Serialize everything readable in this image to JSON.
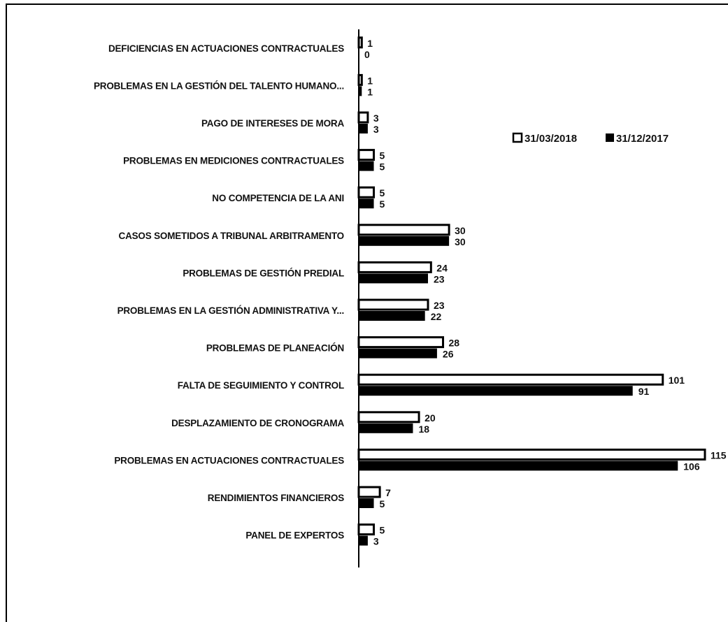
{
  "chart_data": {
    "type": "bar",
    "orientation": "horizontal",
    "categories": [
      "DEFICIENCIAS EN ACTUACIONES CONTRACTUALES",
      "PROBLEMAS EN LA GESTIÓN DEL TALENTO HUMANO...",
      "PAGO DE INTERESES DE MORA",
      "PROBLEMAS EN MEDICIONES CONTRACTUALES",
      "NO COMPETENCIA DE LA ANI",
      "CASOS SOMETIDOS A TRIBUNAL ARBITRAMENTO",
      "PROBLEMAS DE GESTIÓN PREDIAL",
      "PROBLEMAS EN LA GESTIÓN ADMINISTRATIVA Y...",
      "PROBLEMAS DE PLANEACIÓN",
      "FALTA DE SEGUIMIENTO Y CONTROL",
      "DESPLAZAMIENTO DE CRONOGRAMA",
      "PROBLEMAS EN ACTUACIONES CONTRACTUALES",
      "RENDIMIENTOS FINANCIEROS",
      "PANEL DE EXPERTOS"
    ],
    "series": [
      {
        "name": "31/03/2018",
        "style": "outline",
        "values": [
          1,
          1,
          3,
          5,
          5,
          30,
          24,
          23,
          28,
          101,
          20,
          115,
          7,
          5
        ],
        "labels": [
          "1",
          "1",
          "3",
          "5",
          "5",
          "30",
          "24",
          "23",
          "28",
          "101",
          "20",
          "115",
          "7",
          "5"
        ]
      },
      {
        "name": "31/12/2017",
        "style": "solid",
        "values": [
          0,
          1,
          3,
          5,
          5,
          30,
          23,
          22,
          26,
          91,
          18,
          106,
          5,
          3
        ],
        "labels": [
          "0",
          "1",
          "3",
          "5",
          "5",
          "30",
          "23",
          "22",
          "26",
          "91",
          "18",
          "106",
          "5",
          "3"
        ]
      }
    ],
    "legend": {
      "placement": "right",
      "items": [
        {
          "label": "31/03/2018",
          "marker": "outline"
        },
        {
          "label": "31/12/2017",
          "marker": "solid"
        }
      ]
    },
    "xlim": [
      0,
      115
    ],
    "grid": false,
    "colors": {
      "bar": "#000000",
      "outline_fill": "#ffffff",
      "axis": "#000000"
    }
  }
}
